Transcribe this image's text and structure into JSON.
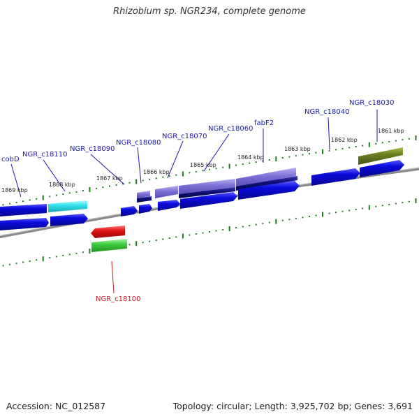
{
  "title": "Rhizobium sp. NGR234, complete genome",
  "footer": {
    "accession": "Accession: NC_012587",
    "summary": "Topology: circular; Length: 3,925,702 bp; Genes: 3,691"
  },
  "scale_labels": [
    "1861 kbp",
    "1862 kbp",
    "1863 kbp",
    "1864 kbp",
    "1865 kbp",
    "1866 kbp",
    "1867 kbp",
    "1868 kbp",
    "1869 kbp"
  ],
  "gene_labels": [
    "NGR_c18030",
    "NGR_c18040",
    "fabF2",
    "NGR_c18060",
    "NGR_c18070",
    "NGR_c18080",
    "NGR_c18090",
    "NGR_c18110",
    "cobD",
    "NGR_c18100"
  ],
  "colors": {
    "gene_blue": "#0b0bdc",
    "gene_cyan": "#33e3ee",
    "gene_red": "#e21414",
    "gene_green": "#3ecd3e",
    "gene_olive": "#6b7f22",
    "gene_lavender": "#7b6fd6",
    "gene_navy": "#10107a",
    "tick_green": "#1f7a1f",
    "backbone": "#7a7a7a",
    "label_blue": "#1a1aa6",
    "label_red": "#c81e1e"
  }
}
